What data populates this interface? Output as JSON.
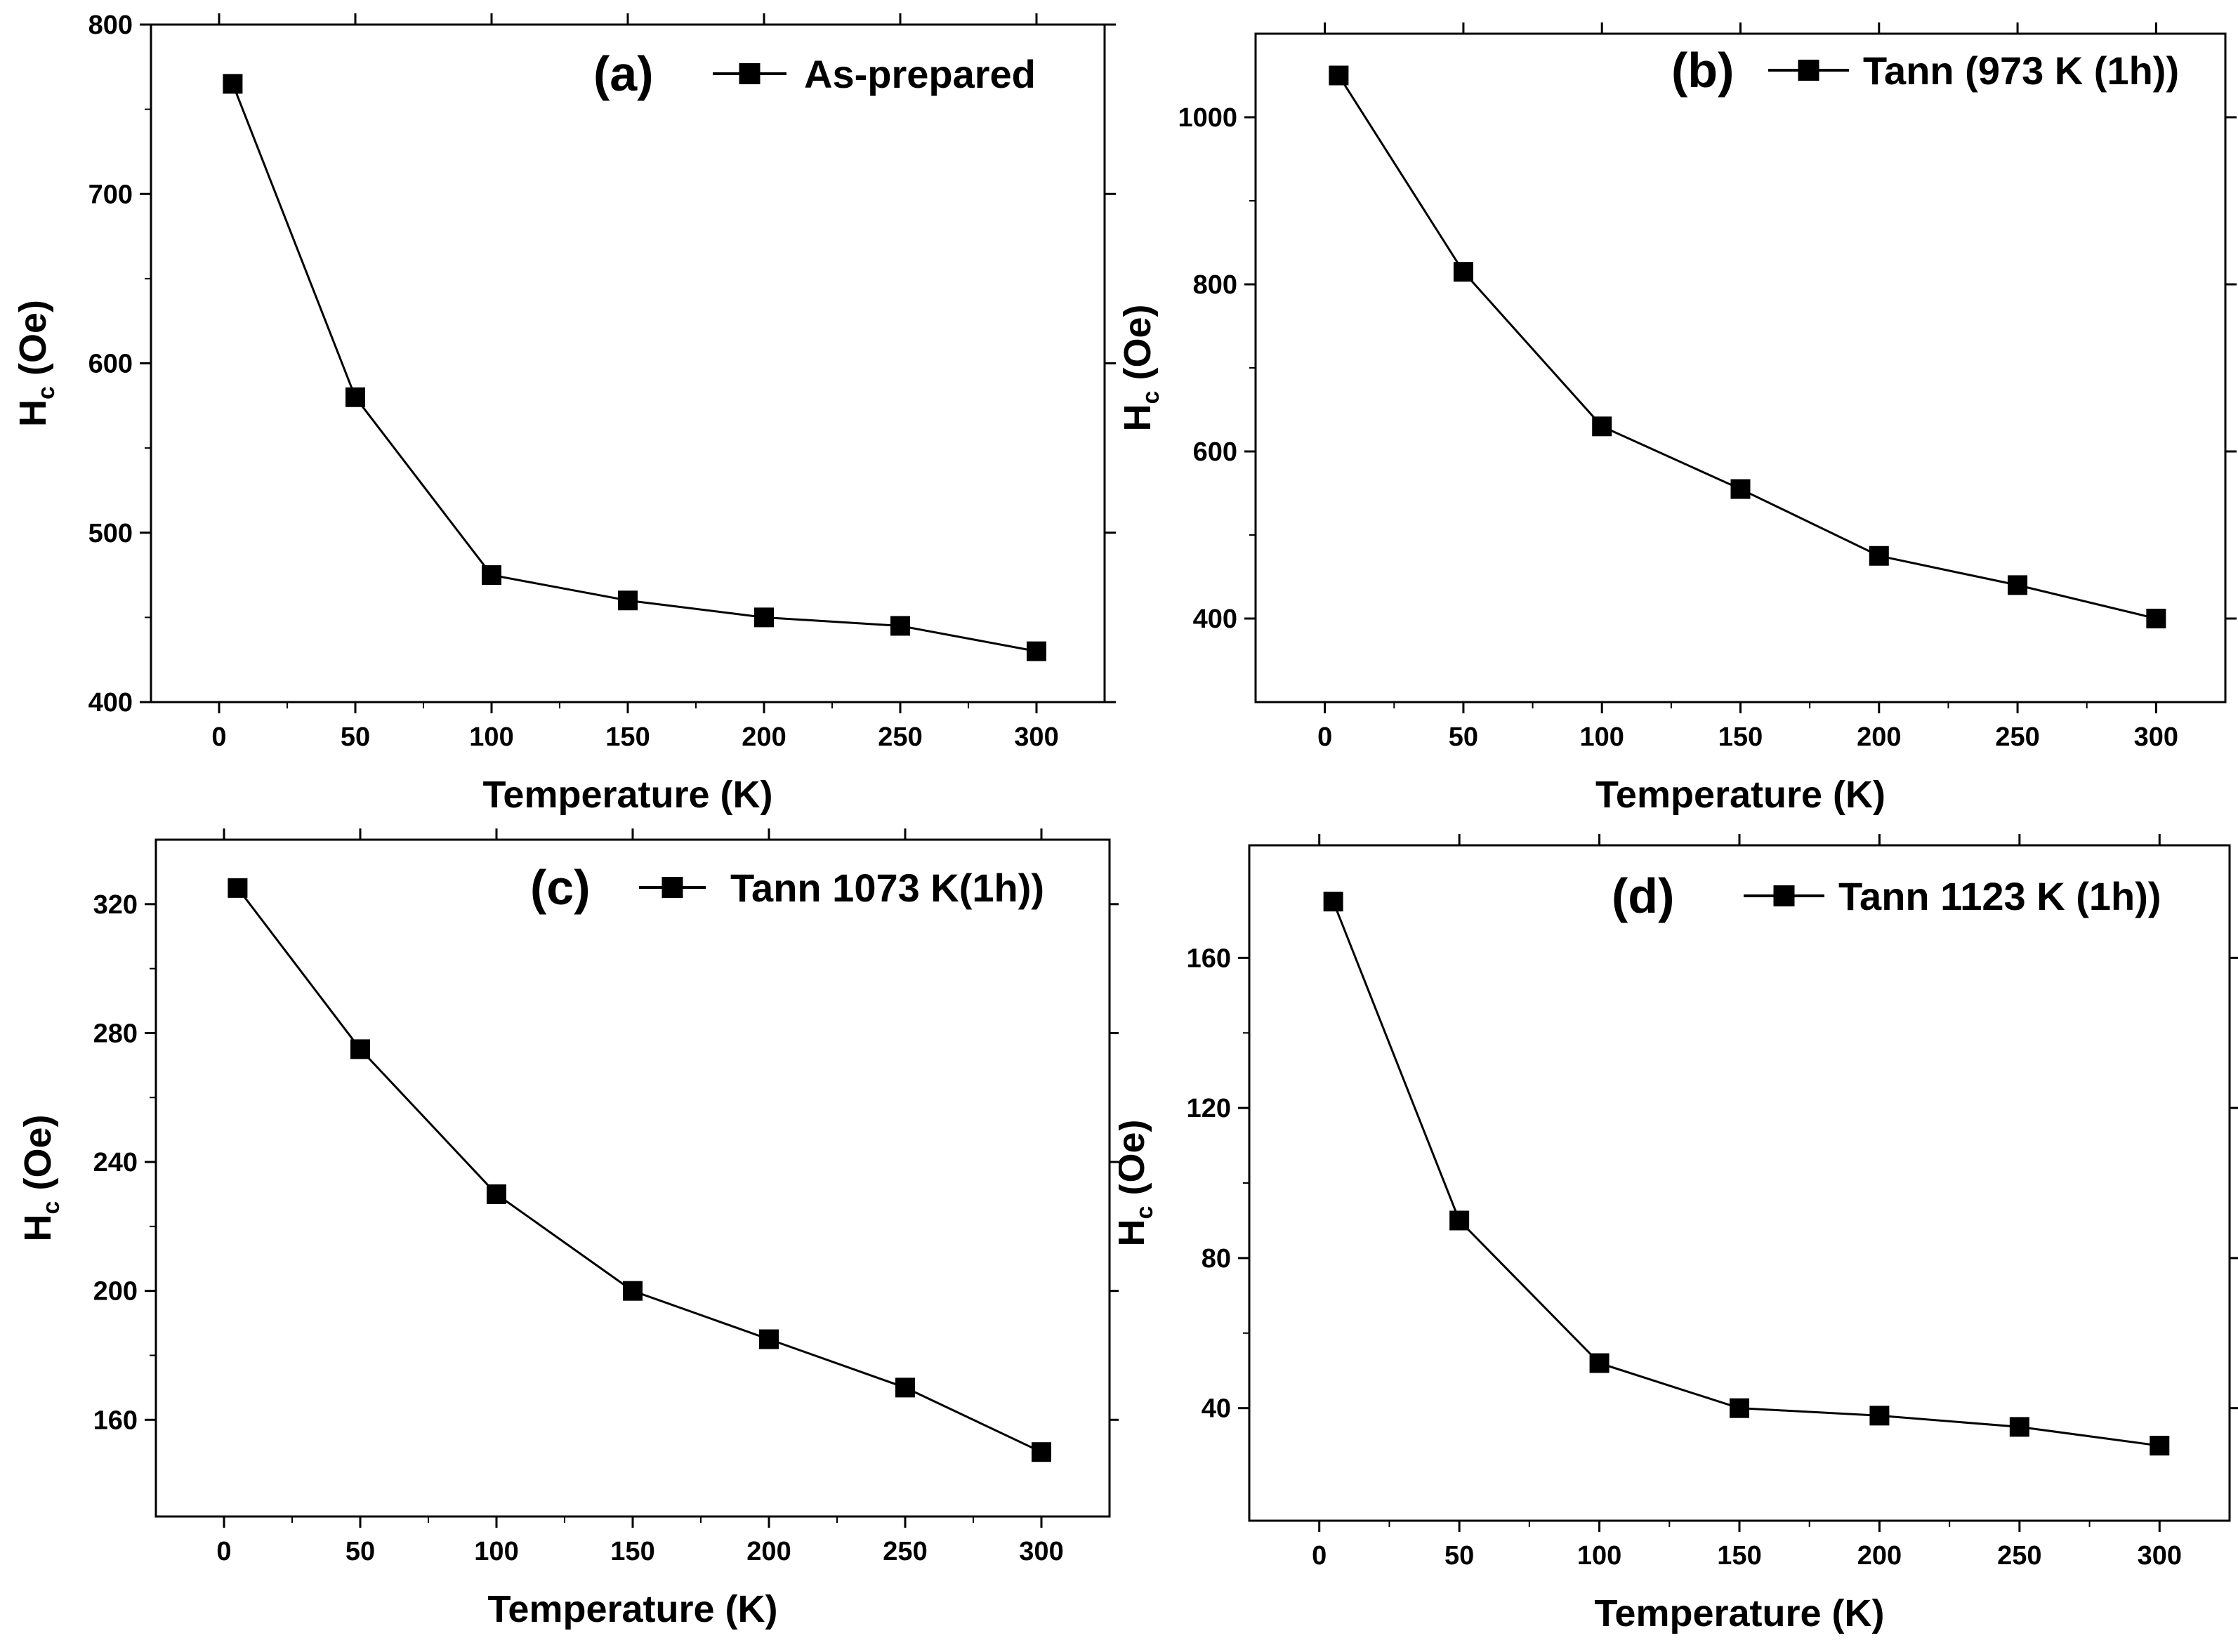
{
  "chart_data": [
    {
      "type": "line",
      "panel_label": "(a)",
      "legend": "As-prepared",
      "xlabel": "Temperature (K)",
      "ylabel": "H",
      "ylabel_sub": "c",
      "ylabel_unit": "(Oe)",
      "xlim": [
        -25,
        325
      ],
      "ylim": [
        400,
        800
      ],
      "xticks": [
        0,
        50,
        100,
        150,
        200,
        250,
        300
      ],
      "yticks": [
        400,
        500,
        600,
        700,
        800
      ],
      "x": [
        5,
        50,
        100,
        150,
        200,
        250,
        300
      ],
      "series": [
        {
          "name": "As-prepared",
          "values": [
            765,
            580,
            475,
            460,
            450,
            445,
            430
          ]
        }
      ]
    },
    {
      "type": "line",
      "panel_label": "(b)",
      "legend": "Tann (973 K (1h))",
      "xlabel": "Temperature (K)",
      "ylabel": "H",
      "ylabel_sub": "c",
      "ylabel_unit": "(Oe)",
      "xlim": [
        -25,
        325
      ],
      "ylim": [
        300,
        1100
      ],
      "xticks": [
        0,
        50,
        100,
        150,
        200,
        250,
        300
      ],
      "yticks": [
        400,
        600,
        800,
        1000
      ],
      "x": [
        5,
        50,
        100,
        150,
        200,
        250,
        300
      ],
      "series": [
        {
          "name": "Tann (973 K (1h))",
          "values": [
            1050,
            815,
            630,
            555,
            475,
            440,
            400
          ]
        }
      ]
    },
    {
      "type": "line",
      "panel_label": "(c)",
      "legend": "Tann 1073 K(1h))",
      "xlabel": "Temperature (K)",
      "ylabel": "H",
      "ylabel_sub": "c",
      "ylabel_unit": "(Oe)",
      "xlim": [
        -25,
        325
      ],
      "ylim": [
        130,
        340
      ],
      "xticks": [
        0,
        50,
        100,
        150,
        200,
        250,
        300
      ],
      "yticks": [
        160,
        200,
        240,
        280,
        320
      ],
      "x": [
        5,
        50,
        100,
        150,
        200,
        250,
        300
      ],
      "series": [
        {
          "name": "Tann 1073 K(1h))",
          "values": [
            325,
            275,
            230,
            200,
            185,
            170,
            150
          ]
        }
      ]
    },
    {
      "type": "line",
      "panel_label": "(d)",
      "legend": "Tann 1123 K (1h))",
      "xlabel": "Temperature (K)",
      "ylabel": "H",
      "ylabel_sub": "c",
      "ylabel_unit": "(Oe)",
      "xlim": [
        -25,
        325
      ],
      "ylim": [
        10,
        190
      ],
      "xticks": [
        0,
        50,
        100,
        150,
        200,
        250,
        300
      ],
      "yticks": [
        40,
        80,
        120,
        160
      ],
      "x": [
        5,
        50,
        100,
        150,
        200,
        250,
        300
      ],
      "series": [
        {
          "name": "Tann 1123 K (1h))",
          "values": [
            175,
            90,
            52,
            40,
            38,
            35,
            30
          ]
        }
      ]
    }
  ]
}
